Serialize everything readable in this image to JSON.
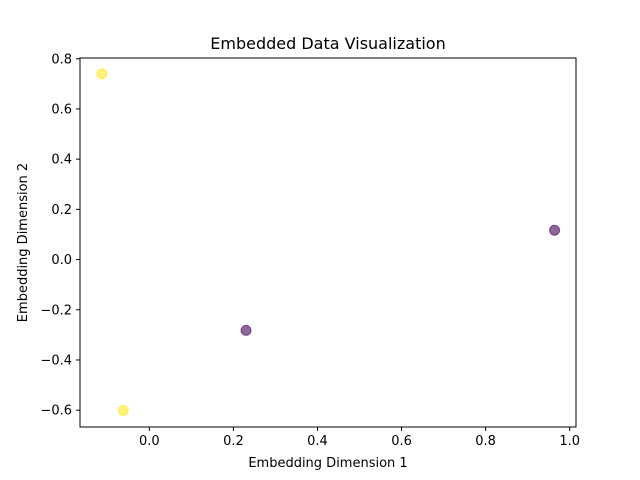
{
  "chart_data": {
    "type": "scatter",
    "title": "Embedded Data Visualization",
    "xlabel": "Embedding Dimension 1",
    "ylabel": "Embedding Dimension 2",
    "xlim": [
      -0.165,
      1.015
    ],
    "ylim": [
      -0.667,
      0.803
    ],
    "xticks": [
      0.0,
      0.2,
      0.4,
      0.6,
      0.8,
      1.0
    ],
    "yticks": [
      -0.6,
      -0.4,
      -0.2,
      0.0,
      0.2,
      0.4,
      0.6,
      0.8
    ],
    "grid": false,
    "points": [
      {
        "x": -0.113,
        "y": 0.74,
        "color": "#fde725"
      },
      {
        "x": -0.062,
        "y": -0.601,
        "color": "#fde725"
      },
      {
        "x": 0.23,
        "y": -0.282,
        "color": "#440154"
      },
      {
        "x": 0.964,
        "y": 0.117,
        "color": "#440154"
      }
    ],
    "marker_alpha": 0.6
  }
}
